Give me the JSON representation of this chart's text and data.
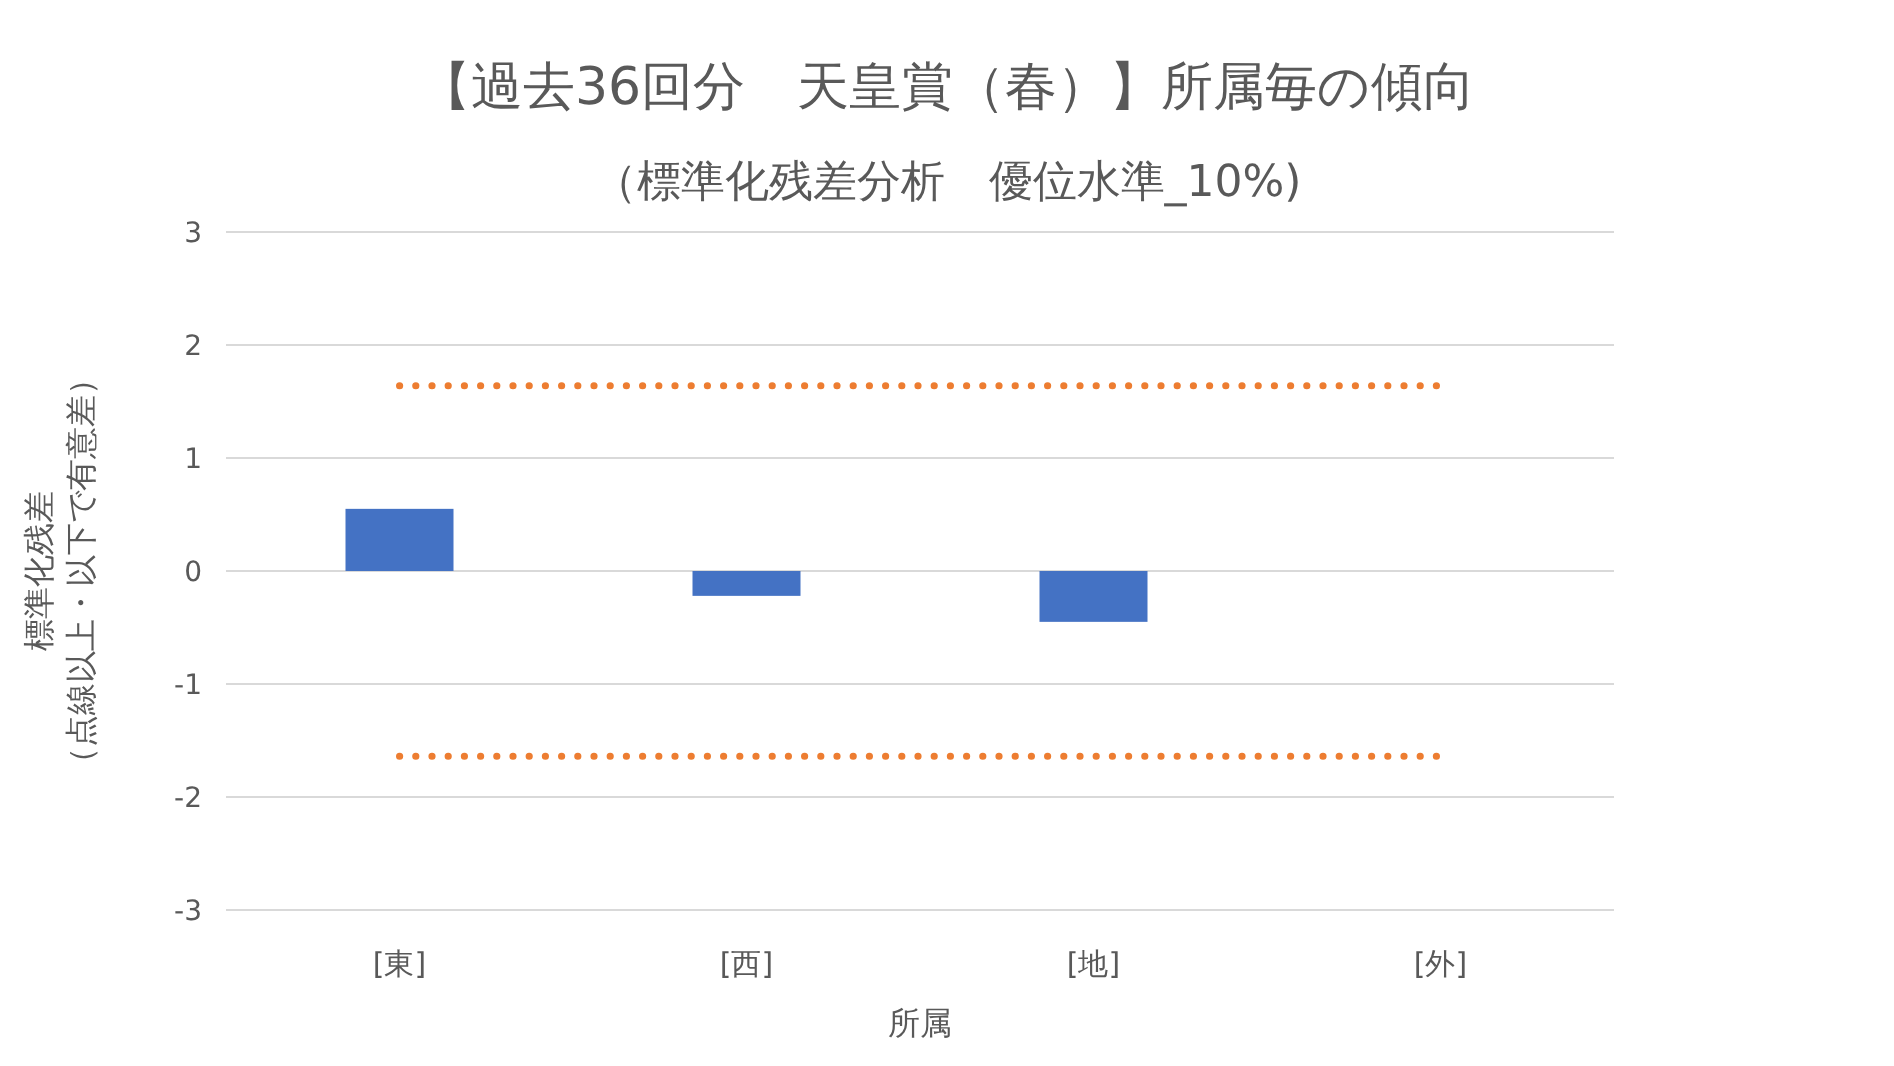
{
  "chart_data": {
    "type": "bar",
    "title": "【過去36回分　天皇賞（春）】所属毎の傾向",
    "subtitle": "（標準化残差分析　優位水準_10%)",
    "xlabel": "所属",
    "ylabel": "標準化残差（点線以上・以下で有意差）",
    "categories": [
      "[東]",
      "[西]",
      "[地]",
      "[外]"
    ],
    "values": [
      0.55,
      -0.22,
      -0.45,
      null
    ],
    "color": "#4472c4",
    "ylim": [
      -3,
      3
    ],
    "yticks": [
      -3,
      -2,
      -1,
      0,
      1,
      2,
      3
    ],
    "grid": "y",
    "ref_lines": [
      {
        "axis": "y",
        "value": 1.64,
        "color": "#ed7d31",
        "line_style": "dotted"
      },
      {
        "axis": "y",
        "value": -1.64,
        "color": "#ed7d31",
        "line_style": "dotted"
      }
    ]
  }
}
